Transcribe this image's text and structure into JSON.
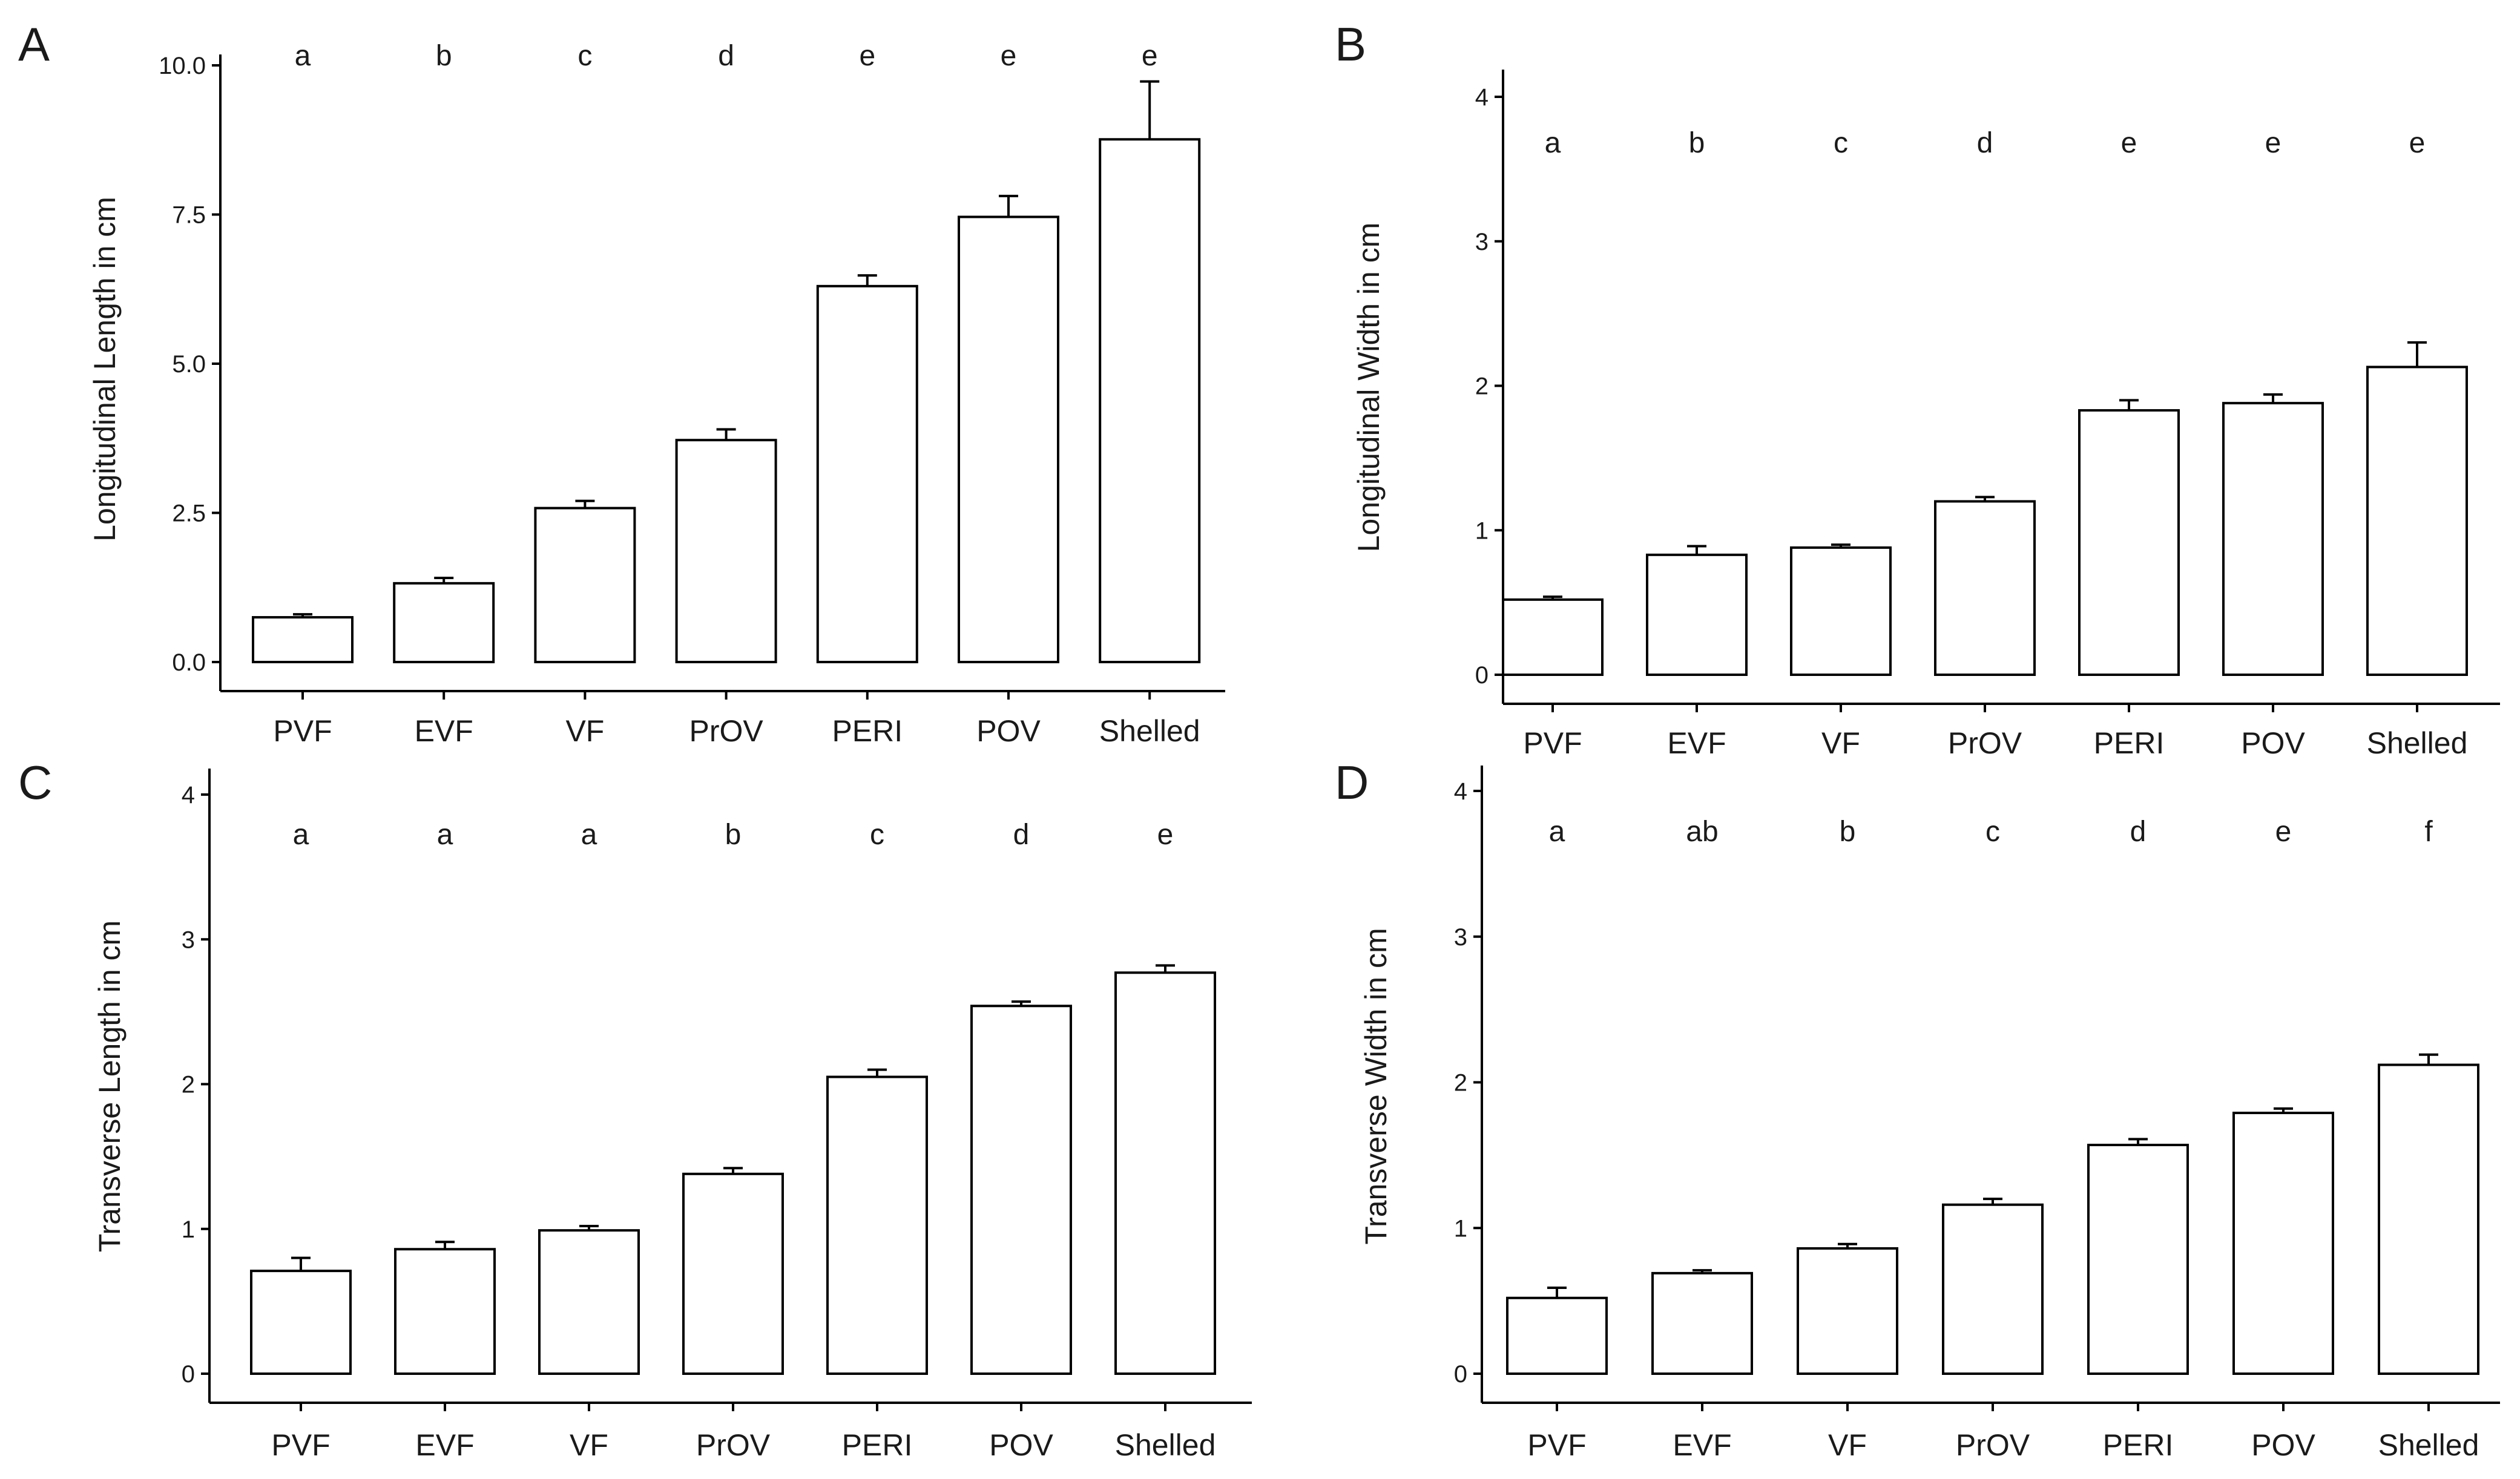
{
  "figure": {
    "panels": [
      "A",
      "B",
      "C",
      "D"
    ]
  },
  "chart_data": [
    {
      "panel": "A",
      "type": "bar",
      "categories": [
        "PVF",
        "EVF",
        "VF",
        "PrOV",
        "PERI",
        "POV",
        "Shelled"
      ],
      "values": [
        0.75,
        1.32,
        2.58,
        3.72,
        6.3,
        7.46,
        8.76
      ],
      "errors": [
        0.05,
        0.09,
        0.12,
        0.18,
        0.18,
        0.35,
        0.97
      ],
      "significance": [
        "a",
        "b",
        "c",
        "d",
        "e",
        "e",
        "e"
      ],
      "xlabel": "",
      "ylabel": "Longitudinal Length in cm",
      "ylim": [
        0,
        10
      ],
      "yticks": [
        0,
        2.5,
        5,
        7.5,
        10
      ],
      "ytick_labels": [
        "0.0",
        "2.5",
        "5.0",
        "7.5",
        "10.0"
      ],
      "bar_fill": "#ffffff",
      "bar_stroke": "#000000"
    },
    {
      "panel": "B",
      "type": "bar",
      "categories": [
        "PVF",
        "EVF",
        "VF",
        "PrOV",
        "PERI",
        "POV",
        "Shelled"
      ],
      "values": [
        0.52,
        0.83,
        0.88,
        1.2,
        1.83,
        1.88,
        2.13
      ],
      "errors": [
        0.02,
        0.06,
        0.02,
        0.03,
        0.07,
        0.06,
        0.17
      ],
      "significance": [
        "a",
        "b",
        "c",
        "d",
        "e",
        "e",
        "e"
      ],
      "xlabel": "",
      "ylabel": "Longitudinal Width in cm",
      "ylim": [
        0,
        4
      ],
      "yticks": [
        0,
        1,
        2,
        3,
        4
      ],
      "ytick_labels": [
        "0",
        "1",
        "2",
        "3",
        "4"
      ],
      "bar_fill": "#ffffff",
      "bar_stroke": "#000000"
    },
    {
      "panel": "C",
      "type": "bar",
      "categories": [
        "PVF",
        "EVF",
        "VF",
        "PrOV",
        "PERI",
        "POV",
        "Shelled"
      ],
      "values": [
        0.71,
        0.86,
        0.99,
        1.38,
        2.05,
        2.54,
        2.77
      ],
      "errors": [
        0.09,
        0.05,
        0.03,
        0.04,
        0.05,
        0.03,
        0.05
      ],
      "significance": [
        "a",
        "a",
        "a",
        "b",
        "c",
        "d",
        "e"
      ],
      "xlabel": "",
      "ylabel": "Transverse Length in cm",
      "ylim": [
        0,
        4
      ],
      "yticks": [
        0,
        1,
        2,
        3,
        4
      ],
      "ytick_labels": [
        "0",
        "1",
        "2",
        "3",
        "4"
      ],
      "bar_fill": "#ffffff",
      "bar_stroke": "#000000"
    },
    {
      "panel": "D",
      "type": "bar",
      "categories": [
        "PVF",
        "EVF",
        "VF",
        "PrOV",
        "PERI",
        "POV",
        "Shelled"
      ],
      "values": [
        0.52,
        0.69,
        0.86,
        1.16,
        1.57,
        1.79,
        2.12
      ],
      "errors": [
        0.07,
        0.02,
        0.03,
        0.04,
        0.04,
        0.03,
        0.07
      ],
      "significance": [
        "a",
        "ab",
        "b",
        "c",
        "d",
        "e",
        "f"
      ],
      "xlabel": "",
      "ylabel": "Transverse Width in cm",
      "ylim": [
        0,
        4
      ],
      "yticks": [
        0,
        1,
        2,
        3,
        4
      ],
      "ytick_labels": [
        "0",
        "1",
        "2",
        "3",
        "4"
      ],
      "bar_fill": "#ffffff",
      "bar_stroke": "#000000"
    }
  ]
}
